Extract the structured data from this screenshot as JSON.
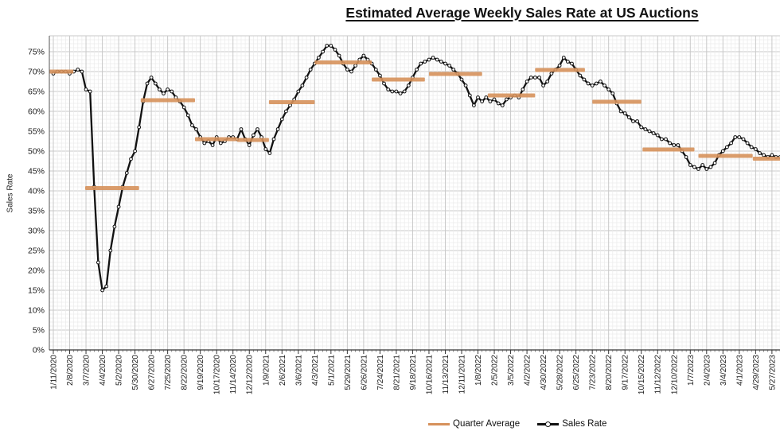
{
  "title": "Estimated Average Weekly Sales Rate at US Auctions",
  "y_axis": {
    "label": "Sales Rate",
    "min": 0,
    "max": 75,
    "tick_step": 5,
    "tick_suffix": "%"
  },
  "legend": {
    "quarter_average": "Quarter Average",
    "sales_rate": "Sales Rate"
  },
  "colors": {
    "quarter_average_bar": "#D6915B",
    "sales_rate_line": "#111111",
    "marker_fill": "#ffffff",
    "grid_minor": "#ebebeb",
    "grid_major": "#c9c9c9",
    "axis": "#555555",
    "text": "#1a1a1a"
  },
  "chart_data": {
    "type": "line",
    "title": "Estimated Average Weekly Sales Rate at US Auctions",
    "xlabel": "",
    "ylabel": "Sales Rate",
    "ylim": [
      0,
      79
    ],
    "grid": true,
    "legend_position": "bottom",
    "x_label_interval_weeks": 4,
    "x_labels": [
      "1/11/2020",
      "2/8/2020",
      "3/7/2020",
      "4/4/2020",
      "5/2/2020",
      "5/30/2020",
      "6/27/2020",
      "7/25/2020",
      "8/22/2020",
      "9/19/2020",
      "10/17/2020",
      "11/14/2020",
      "12/12/2020",
      "1/9/2021",
      "2/6/2021",
      "3/6/2021",
      "4/3/2021",
      "5/1/2021",
      "5/29/2021",
      "6/26/2021",
      "7/24/2021",
      "8/21/2021",
      "9/18/2021",
      "10/16/2021",
      "11/13/2021",
      "12/11/2021",
      "1/8/2022",
      "2/5/2022",
      "3/5/2022",
      "4/2/2022",
      "4/30/2022",
      "5/28/2022",
      "6/25/2022",
      "7/23/2022",
      "8/20/2022",
      "9/17/2022",
      "10/15/2022",
      "11/12/2022",
      "12/10/2022",
      "1/7/2023",
      "2/4/2023",
      "3/4/2023",
      "4/1/2023",
      "4/29/2023",
      "5/27/2023"
    ],
    "series": [
      {
        "name": "Sales Rate",
        "unit": "percent",
        "weekly_values": [
          69.5,
          70,
          70,
          70,
          69.5,
          70,
          70.5,
          70,
          65.5,
          65,
          41,
          22,
          15,
          16,
          25,
          31,
          36,
          41,
          44.5,
          48,
          50,
          56,
          62.5,
          67,
          68.5,
          67,
          65.5,
          64.5,
          65.5,
          65,
          63.5,
          62.5,
          61,
          59,
          56.5,
          55.5,
          53.5,
          52,
          52.5,
          51.5,
          53.5,
          52,
          52.5,
          53.5,
          53.5,
          53,
          55.5,
          53,
          51.5,
          54,
          55.5,
          53.5,
          50.5,
          49.5,
          53,
          55.5,
          58,
          60,
          61.5,
          63,
          65,
          66.5,
          68.5,
          70.5,
          72,
          73.5,
          75,
          76.5,
          76.5,
          75.5,
          74,
          72,
          70.5,
          70,
          71.5,
          73,
          74,
          73,
          72,
          70.5,
          69,
          67,
          65.5,
          65,
          65,
          64.5,
          65,
          66.5,
          68.5,
          70.5,
          72,
          72.5,
          73,
          73.5,
          73,
          72.5,
          72,
          71.5,
          70.5,
          69.5,
          68,
          66.5,
          64,
          61.5,
          63.5,
          62.5,
          63.5,
          62.5,
          63,
          62,
          61.5,
          63,
          63.5,
          64,
          63.5,
          65.5,
          67.5,
          68.5,
          68.5,
          68.5,
          66.5,
          67.5,
          69.5,
          70.5,
          71.5,
          73.5,
          72.5,
          72,
          70.5,
          69,
          68,
          67,
          66.5,
          67,
          67.5,
          66.5,
          65.5,
          64.5,
          62,
          60,
          59.5,
          58.5,
          57.5,
          57.5,
          56,
          55.5,
          55,
          54.5,
          54,
          53,
          53,
          52,
          51.5,
          51.5,
          50,
          48.5,
          46.5,
          46,
          45.5,
          46.5,
          45.5,
          46,
          47,
          49,
          50,
          51,
          52,
          53.5,
          53.5,
          53,
          52,
          51,
          50.5,
          49.5,
          49,
          48.5,
          49,
          48.5,
          48.5
        ]
      },
      {
        "name": "Quarter Average",
        "unit": "percent",
        "segments": [
          {
            "start_week": -1,
            "end_week": 4.9,
            "value": 70
          },
          {
            "start_week": 7.8,
            "end_week": 21,
            "value": 40.7
          },
          {
            "start_week": 21.4,
            "end_week": 34.7,
            "value": 62.8
          },
          {
            "start_week": 34.7,
            "end_week": 45,
            "value": 53
          },
          {
            "start_week": 45,
            "end_week": 52.8,
            "value": 52.8
          },
          {
            "start_week": 52.8,
            "end_week": 64,
            "value": 62.3
          },
          {
            "start_week": 64,
            "end_week": 78,
            "value": 72.3
          },
          {
            "start_week": 78,
            "end_week": 91,
            "value": 68
          },
          {
            "start_week": 92,
            "end_week": 105,
            "value": 69.4
          },
          {
            "start_week": 106.4,
            "end_week": 118,
            "value": 64
          },
          {
            "start_week": 118,
            "end_week": 130.2,
            "value": 70.4
          },
          {
            "start_week": 132,
            "end_week": 144,
            "value": 62.4
          },
          {
            "start_week": 144.3,
            "end_week": 157,
            "value": 50.4
          },
          {
            "start_week": 158,
            "end_week": 171.3,
            "value": 48.8
          },
          {
            "start_week": 171.3,
            "end_week": 179,
            "value": 48.1
          }
        ]
      }
    ]
  }
}
